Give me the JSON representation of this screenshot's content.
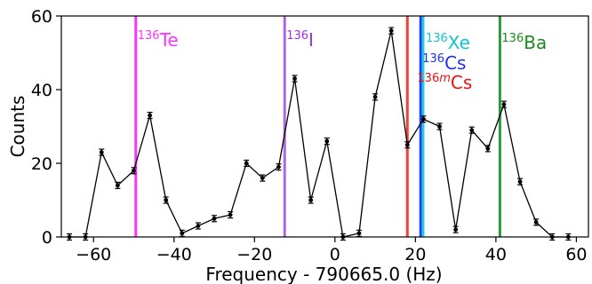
{
  "chart_data": {
    "type": "line",
    "title": "",
    "xlabel": "Frequency - 790665.0 (Hz)",
    "ylabel": "Counts",
    "xlim": [
      -68,
      63
    ],
    "ylim": [
      0,
      60
    ],
    "x_ticks": [
      -60,
      -40,
      -20,
      0,
      20,
      40,
      60
    ],
    "y_ticks": [
      0,
      20,
      40,
      60
    ],
    "x_tick_labels": [
      "−60",
      "−40",
      "−20",
      "0",
      "20",
      "40",
      "60"
    ],
    "y_tick_labels": [
      "0",
      "20",
      "40",
      "60"
    ],
    "grid": false,
    "series": [
      {
        "color": "#000000",
        "marker": "point-with-errorbar",
        "x": [
          -66,
          -62,
          -58,
          -54,
          -50,
          -46,
          -42,
          -38,
          -34,
          -30,
          -26,
          -22,
          -18,
          -14,
          -10,
          -6,
          -2,
          2,
          6,
          10,
          14,
          18,
          22,
          26,
          30,
          34,
          38,
          42,
          46,
          50,
          54,
          58
        ],
        "y": [
          0,
          0,
          23,
          14,
          18,
          33,
          10,
          1,
          3,
          5,
          6,
          20,
          16,
          19,
          43,
          10,
          26,
          0,
          1,
          38,
          56,
          25,
          32,
          30,
          2,
          29,
          24,
          36,
          15,
          4,
          0,
          0
        ]
      }
    ],
    "markers": [
      {
        "x": -49.5,
        "color": "#ff33ff",
        "mass": "136",
        "sup_extra": "",
        "element": "Te",
        "label_color": "#ff33ff"
      },
      {
        "x": -12.5,
        "color": "#b266dd",
        "mass": "136",
        "sup_extra": "",
        "element": "I",
        "label_color": "#9933dd"
      },
      {
        "x": 18.0,
        "color": "#ee4433",
        "mass": "136",
        "sup_extra": "m",
        "element": "Cs",
        "label_color": "#ee1111"
      },
      {
        "x": 21.3,
        "color": "#1f3fff",
        "mass": "136",
        "sup_extra": "",
        "element": "Cs",
        "label_color": "#1f2fee"
      },
      {
        "x": 21.9,
        "color": "#22ccdd",
        "mass": "136",
        "sup_extra": "",
        "element": "Xe",
        "label_color": "#11c4cc"
      },
      {
        "x": 41.0,
        "color": "#2e9a3a",
        "mass": "136",
        "sup_extra": "",
        "element": "Ba",
        "label_color": "#1d8a1d"
      }
    ]
  }
}
